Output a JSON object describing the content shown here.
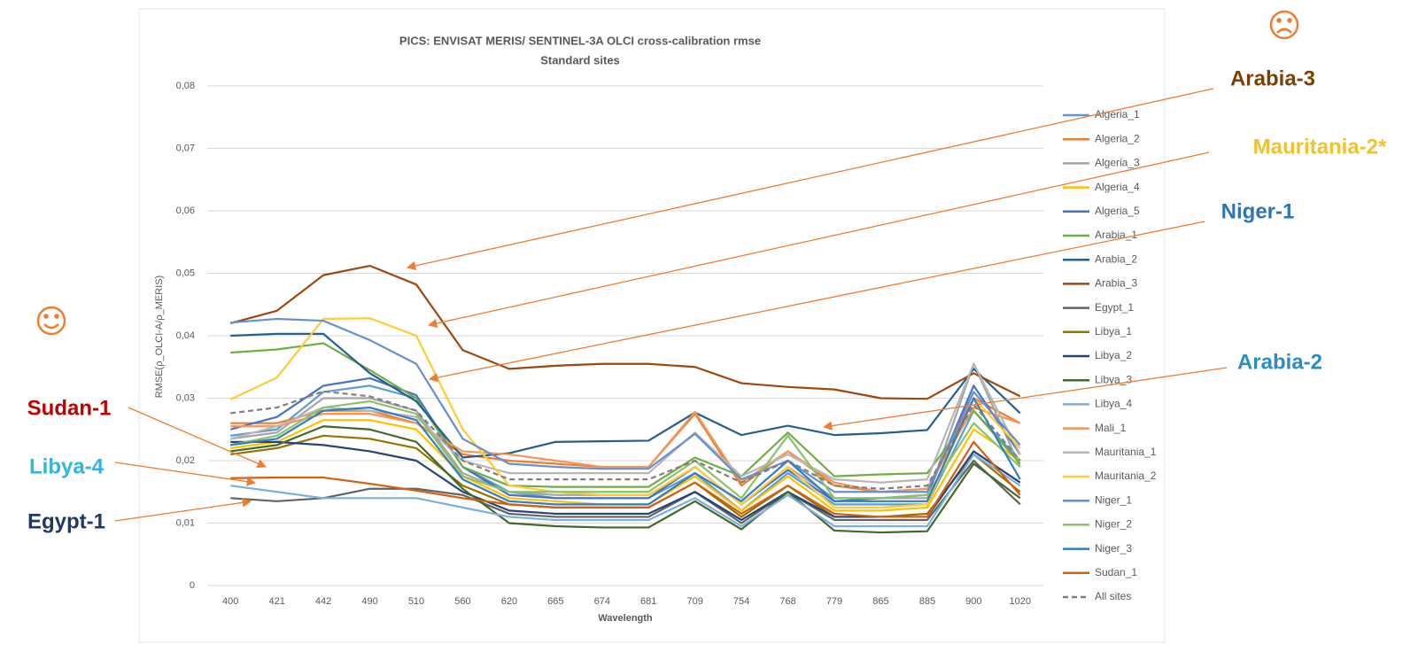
{
  "chart_data": {
    "type": "line",
    "title": "PICS: ENVISAT MERIS/ SENTINEL-3A OLCI cross-calibration rmse",
    "subtitle": "Standard sites",
    "y_label": "RMSE(ρ_OLCI-A/ρ_MERIS)",
    "x_label": "Wavelength",
    "categories": [
      "400",
      "421",
      "442",
      "490",
      "510",
      "560",
      "620",
      "665",
      "674",
      "681",
      "709",
      "754",
      "768",
      "779",
      "865",
      "885",
      "900",
      "1020"
    ],
    "ylim": [
      0,
      0.08
    ],
    "yticks": [
      0,
      {
        "value": 0.01,
        "label": "0,01"
      },
      {
        "value": 0.02,
        "label": "0,02"
      },
      {
        "value": 0.03,
        "label": "0,03"
      },
      {
        "value": 0.04,
        "label": "0,04"
      },
      {
        "value": 0.05,
        "label": "0,05"
      },
      {
        "value": 0.06,
        "label": "0,06"
      },
      {
        "value": 0.07,
        "label": "0,07"
      },
      {
        "value": 0.08,
        "label": "0,08"
      }
    ],
    "grid": true,
    "legend": "right",
    "series": [
      {
        "name": "Algeria_1",
        "color": "#5b9bd5",
        "values": [
          0.024,
          0.025,
          0.031,
          0.032,
          0.03,
          0.019,
          0.015,
          0.014,
          0.014,
          0.014,
          0.018,
          0.012,
          0.018,
          0.013,
          0.013,
          0.013,
          0.028,
          0.02
        ]
      },
      {
        "name": "Algeria_2",
        "color": "#ed7d31",
        "values": [
          0.026,
          0.026,
          0.028,
          0.028,
          0.026,
          0.021,
          0.02,
          0.0195,
          0.019,
          0.019,
          0.0275,
          0.016,
          0.0215,
          0.016,
          0.015,
          0.0155,
          0.03,
          0.026
        ]
      },
      {
        "name": "Algeria_3",
        "color": "#a5a5a5",
        "values": [
          0.0235,
          0.0245,
          0.03,
          0.03,
          0.028,
          0.018,
          0.015,
          0.0145,
          0.0145,
          0.0145,
          0.019,
          0.013,
          0.019,
          0.014,
          0.014,
          0.014,
          0.0355,
          0.019
        ]
      },
      {
        "name": "Algeria_4",
        "color": "#ffc000",
        "values": [
          0.022,
          0.023,
          0.0265,
          0.0265,
          0.025,
          0.0175,
          0.014,
          0.0135,
          0.013,
          0.013,
          0.0175,
          0.012,
          0.0175,
          0.012,
          0.012,
          0.0125,
          0.025,
          0.02
        ]
      },
      {
        "name": "Algeria_5",
        "color": "#4472c4",
        "values": [
          0.025,
          0.027,
          0.032,
          0.0332,
          0.0305,
          0.019,
          0.0145,
          0.014,
          0.014,
          0.014,
          0.019,
          0.013,
          0.0185,
          0.0135,
          0.014,
          0.0145,
          0.032,
          0.021
        ]
      },
      {
        "name": "Arabia_1",
        "color": "#70ad47",
        "values": [
          0.0373,
          0.0378,
          0.0388,
          0.0345,
          0.03,
          0.019,
          0.016,
          0.0158,
          0.0158,
          0.0158,
          0.0205,
          0.0175,
          0.0245,
          0.0175,
          0.0178,
          0.018,
          0.028,
          0.0195
        ]
      },
      {
        "name": "Arabia_2",
        "color": "#255e91",
        "values": [
          0.04,
          0.0403,
          0.0403,
          0.034,
          0.0295,
          0.0205,
          0.0212,
          0.023,
          0.0231,
          0.0232,
          0.0277,
          0.0241,
          0.0256,
          0.0241,
          0.0244,
          0.0249,
          0.0347,
          0.0276
        ]
      },
      {
        "name": "Arabia_3",
        "color": "#9e480e",
        "values": [
          0.042,
          0.044,
          0.0497,
          0.0512,
          0.0482,
          0.0377,
          0.0347,
          0.0352,
          0.0355,
          0.0355,
          0.035,
          0.0324,
          0.0318,
          0.0314,
          0.03,
          0.0299,
          0.034,
          0.0303
        ]
      },
      {
        "name": "Egypt_1",
        "color": "#636363",
        "values": [
          0.014,
          0.0135,
          0.014,
          0.0155,
          0.0155,
          0.0145,
          0.0115,
          0.011,
          0.011,
          0.011,
          0.015,
          0.01,
          0.015,
          0.0105,
          0.0105,
          0.0105,
          0.02,
          0.013
        ]
      },
      {
        "name": "Libya_1",
        "color": "#997300",
        "values": [
          0.021,
          0.022,
          0.024,
          0.0235,
          0.022,
          0.016,
          0.013,
          0.0125,
          0.0125,
          0.0125,
          0.0165,
          0.011,
          0.016,
          0.011,
          0.011,
          0.0115,
          0.021,
          0.015
        ]
      },
      {
        "name": "Libya_2",
        "color": "#264478",
        "values": [
          0.023,
          0.023,
          0.0225,
          0.0215,
          0.02,
          0.015,
          0.012,
          0.0115,
          0.0115,
          0.0115,
          0.015,
          0.0105,
          0.015,
          0.011,
          0.011,
          0.011,
          0.0215,
          0.0165
        ]
      },
      {
        "name": "Libya_3",
        "color": "#43682b",
        "values": [
          0.0215,
          0.0225,
          0.0255,
          0.025,
          0.023,
          0.0155,
          0.01,
          0.0095,
          0.0093,
          0.0093,
          0.0135,
          0.009,
          0.015,
          0.0088,
          0.0085,
          0.0087,
          0.0195,
          0.014
        ]
      },
      {
        "name": "Libya_4",
        "color": "#7cafdd",
        "values": [
          0.016,
          0.015,
          0.014,
          0.014,
          0.014,
          0.0125,
          0.011,
          0.0105,
          0.0105,
          0.0105,
          0.014,
          0.0095,
          0.0145,
          0.0095,
          0.0095,
          0.0095,
          0.021,
          0.016
        ]
      },
      {
        "name": "Mali_1",
        "color": "#f1975a",
        "values": [
          0.0255,
          0.0255,
          0.0275,
          0.0275,
          0.026,
          0.0215,
          0.021,
          0.02,
          0.019,
          0.019,
          0.0278,
          0.0165,
          0.0215,
          0.0165,
          0.015,
          0.0155,
          0.0285,
          0.026
        ]
      },
      {
        "name": "Mauritania_1",
        "color": "#b7b7b7",
        "values": [
          0.0235,
          0.0255,
          0.0285,
          0.028,
          0.027,
          0.02,
          0.018,
          0.018,
          0.018,
          0.018,
          0.0245,
          0.0175,
          0.021,
          0.017,
          0.0165,
          0.017,
          0.0355,
          0.021
        ]
      },
      {
        "name": "Mauritania_2",
        "color": "#ffcd33",
        "values": [
          0.0298,
          0.0333,
          0.0427,
          0.0428,
          0.04,
          0.025,
          0.016,
          0.015,
          0.0145,
          0.0145,
          0.019,
          0.013,
          0.019,
          0.0125,
          0.0125,
          0.013,
          0.03,
          0.022
        ]
      },
      {
        "name": "Niger_1",
        "color": "#698ed0",
        "values": [
          0.0421,
          0.0427,
          0.0424,
          0.0393,
          0.0355,
          0.0235,
          0.0195,
          0.019,
          0.0187,
          0.0187,
          0.0243,
          0.017,
          0.02,
          0.015,
          0.015,
          0.015,
          0.031,
          0.0225
        ]
      },
      {
        "name": "Niger_2",
        "color": "#8cc168",
        "values": [
          0.0225,
          0.024,
          0.0285,
          0.0295,
          0.0275,
          0.0175,
          0.015,
          0.015,
          0.015,
          0.015,
          0.02,
          0.014,
          0.024,
          0.014,
          0.014,
          0.0145,
          0.026,
          0.019
        ]
      },
      {
        "name": "Niger_3",
        "color": "#327dc2",
        "values": [
          0.0225,
          0.0235,
          0.028,
          0.0285,
          0.0265,
          0.017,
          0.0135,
          0.013,
          0.013,
          0.013,
          0.018,
          0.0135,
          0.02,
          0.0135,
          0.0135,
          0.0135,
          0.03,
          0.017
        ]
      },
      {
        "name": "Sudan_1",
        "color": "#d26012",
        "values": [
          0.0172,
          0.0173,
          0.0173,
          0.0163,
          0.0152,
          0.014,
          0.013,
          0.0125,
          0.0125,
          0.0125,
          0.0165,
          0.0115,
          0.016,
          0.0115,
          0.011,
          0.011,
          0.023,
          0.0145
        ]
      },
      {
        "name": "All sites",
        "color": "#7f7f7f",
        "dashed": true,
        "values": [
          0.0276,
          0.0285,
          0.0311,
          0.0303,
          0.028,
          0.02,
          0.017,
          0.017,
          0.017,
          0.017,
          0.02,
          0.0165,
          0.02,
          0.016,
          0.0155,
          0.016,
          0.029,
          0.02
        ]
      }
    ],
    "annotations": [
      {
        "text": "Arabia-3",
        "color": "#7b3f00"
      },
      {
        "text": "Mauritania-2*",
        "color": "#f2c12e"
      },
      {
        "text": "Niger-1",
        "color": "#2e75b6"
      },
      {
        "text": "Arabia-2",
        "color": "#2b8cbe"
      },
      {
        "text": "Sudan-1",
        "color": "#c00000"
      },
      {
        "text": "Libya-4",
        "color": "#2fb5e0"
      },
      {
        "text": "Egypt-1",
        "color": "#1f3864"
      }
    ]
  }
}
